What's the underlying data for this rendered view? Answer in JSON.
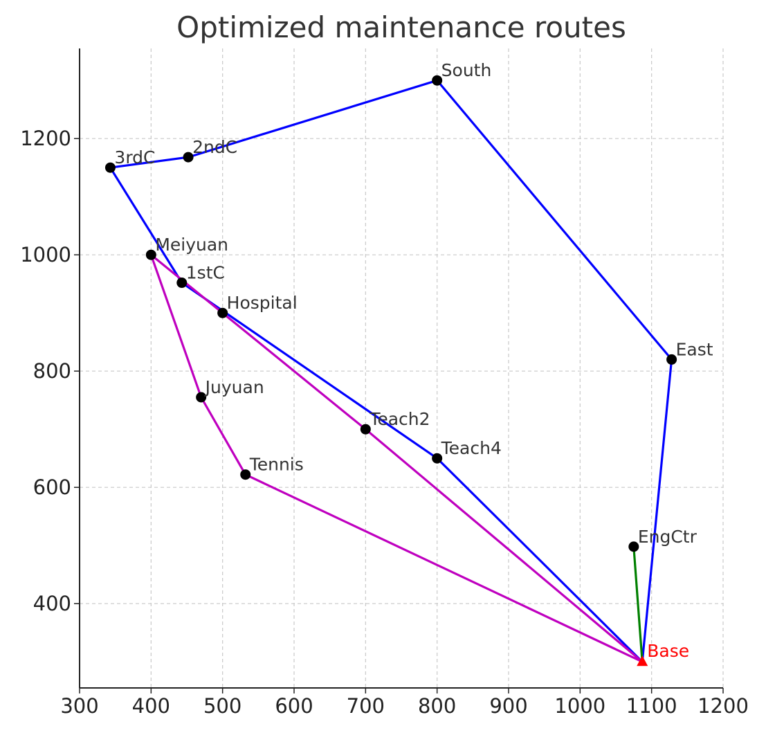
{
  "chart_data": {
    "type": "scatter",
    "title": "Optimized maintenance routes",
    "xlabel": "",
    "ylabel": "",
    "xlim": [
      300,
      1200
    ],
    "ylim": [
      255,
      1355
    ],
    "xticks": [
      300,
      400,
      500,
      600,
      700,
      800,
      900,
      1000,
      1100,
      1200
    ],
    "yticks": [
      400,
      600,
      800,
      1000,
      1200
    ],
    "grid": true,
    "base": {
      "label": "Base",
      "x": 1087,
      "y": 300,
      "color": "#ff0000",
      "marker": "triangle"
    },
    "points": [
      {
        "label": "South",
        "x": 800,
        "y": 1300
      },
      {
        "label": "2ndC",
        "x": 452,
        "y": 1168
      },
      {
        "label": "3rdC",
        "x": 343,
        "y": 1150
      },
      {
        "label": "Meiyuan",
        "x": 400,
        "y": 1000
      },
      {
        "label": "1stC",
        "x": 443,
        "y": 952
      },
      {
        "label": "Hospital",
        "x": 500,
        "y": 900
      },
      {
        "label": "East",
        "x": 1128,
        "y": 820
      },
      {
        "label": "Juyuan",
        "x": 470,
        "y": 755
      },
      {
        "label": "Teach2",
        "x": 700,
        "y": 700
      },
      {
        "label": "Teach4",
        "x": 800,
        "y": 650
      },
      {
        "label": "Tennis",
        "x": 532,
        "y": 622
      },
      {
        "label": "EngCtr",
        "x": 1075,
        "y": 498
      }
    ],
    "routes": [
      {
        "color": "#0000ff",
        "stops": [
          "Base",
          "East",
          "South",
          "2ndC",
          "3rdC",
          "1stC",
          "Teach4",
          "Base"
        ]
      },
      {
        "color": "#bf00bf",
        "stops": [
          "Base",
          "Teach2",
          "Hospital",
          "Meiyuan",
          "Juyuan",
          "Tennis",
          "Base"
        ]
      },
      {
        "color": "#008000",
        "stops": [
          "Base",
          "EngCtr",
          "Base"
        ]
      }
    ]
  }
}
